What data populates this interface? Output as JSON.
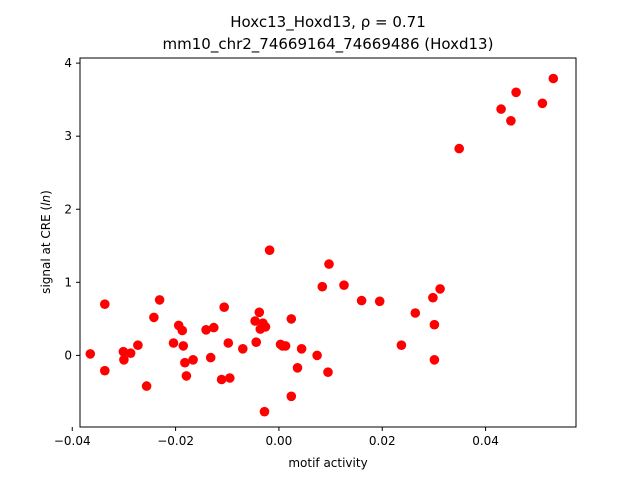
{
  "chart_data": {
    "type": "scatter",
    "title_line1": "Hoxc13_Hoxd13, ρ = 0.71",
    "title_line2": "mm10_chr2_74669164_74669486 (Hoxd13)",
    "xlabel": "motif activity",
    "ylabel": "signal at CRE (ln)",
    "xlim": [
      -0.0385,
      0.0575
    ],
    "ylim": [
      -0.98,
      4.07
    ],
    "xticks": [
      -0.04,
      -0.02,
      0.0,
      0.02,
      0.04
    ],
    "xtick_labels": [
      "−0.04",
      "−0.02",
      "0.00",
      "0.02",
      "0.04"
    ],
    "yticks": [
      0,
      1,
      2,
      3,
      4
    ],
    "ytick_labels": [
      "0",
      "1",
      "2",
      "3",
      "4"
    ],
    "grid": false,
    "marker_color": "#ff0000",
    "x": [
      -0.0365,
      -0.0337,
      -0.0337,
      -0.0301,
      -0.03,
      -0.0287,
      -0.0273,
      -0.0256,
      -0.0242,
      -0.0231,
      -0.0204,
      -0.0194,
      -0.0187,
      -0.0185,
      -0.0182,
      -0.0179,
      -0.0166,
      -0.0141,
      -0.0132,
      -0.0126,
      -0.0111,
      -0.0106,
      -0.0098,
      -0.0095,
      -0.007,
      -0.0046,
      -0.0044,
      -0.0038,
      -0.0036,
      -0.0031,
      -0.0028,
      -0.0026,
      -0.0018,
      0.0003,
      0.0007,
      0.0013,
      0.0024,
      0.0024,
      0.0036,
      0.0044,
      0.0074,
      0.0084,
      0.0095,
      0.0097,
      0.0126,
      0.016,
      0.0195,
      0.0237,
      0.0264,
      0.0298,
      0.0301,
      0.0301,
      0.0312,
      0.0349,
      0.043,
      0.0449,
      0.0459,
      0.051,
      0.0531
    ],
    "y": [
      0.02,
      0.7,
      -0.21,
      0.05,
      -0.06,
      0.03,
      0.14,
      -0.42,
      0.52,
      0.76,
      0.17,
      0.41,
      0.34,
      0.13,
      -0.1,
      -0.28,
      -0.06,
      0.35,
      -0.03,
      0.38,
      -0.33,
      0.66,
      0.17,
      -0.31,
      0.09,
      0.47,
      0.18,
      0.59,
      0.36,
      0.44,
      -0.77,
      0.39,
      1.44,
      0.15,
      0.13,
      0.13,
      0.5,
      -0.56,
      -0.17,
      0.09,
      0.0,
      0.94,
      -0.23,
      1.25,
      0.96,
      0.75,
      0.74,
      0.14,
      0.58,
      0.79,
      0.42,
      -0.06,
      0.91,
      2.83,
      3.37,
      3.21,
      3.6,
      3.45,
      3.79
    ]
  }
}
